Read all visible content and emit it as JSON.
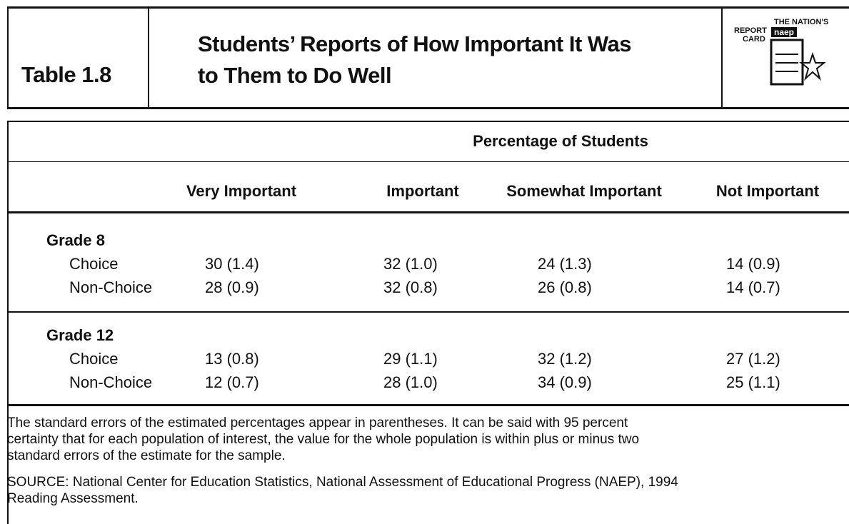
{
  "header": {
    "label": "Table 1.8",
    "title": [
      "Students’ Reports of How Important It Was",
      "to Them to Do Well"
    ],
    "logo": [
      "THE NATION'S",
      "REPORT",
      "CARD",
      "naep"
    ]
  },
  "table": {
    "group_header": "Percentage of Students",
    "columns": [
      "Very Important",
      "Important",
      "Somewhat Important",
      "Not Important"
    ],
    "groups": [
      {
        "name": "Grade 8",
        "rows": [
          {
            "label": "Choice",
            "cells": [
              "30 (1.4)",
              "32 (1.0)",
              "24 (1.3)",
              "14 (0.9)"
            ]
          },
          {
            "label": "Non-Choice",
            "cells": [
              "28 (0.9)",
              "32 (0.8)",
              "26 (0.8)",
              "14 (0.7)"
            ]
          }
        ]
      },
      {
        "name": "Grade 12",
        "rows": [
          {
            "label": "Choice",
            "cells": [
              "13 (0.8)",
              "29 (1.1)",
              "32 (1.2)",
              "27 (1.2)"
            ]
          },
          {
            "label": "Non-Choice",
            "cells": [
              "12 (0.7)",
              "28 (1.0)",
              "34 (0.9)",
              "25 (1.1)"
            ]
          }
        ]
      }
    ]
  },
  "notes": [
    [
      "The standard errors of the estimated percentages appear in parentheses. It can be said with 95 percent",
      "certainty that for each population of interest, the value for the whole population is within plus or minus two",
      "standard errors of the estimate for the sample."
    ],
    [
      "SOURCE: National Center for Education Statistics, National Assessment of Educational Progress (NAEP), 1994",
      "Reading Assessment."
    ]
  ]
}
